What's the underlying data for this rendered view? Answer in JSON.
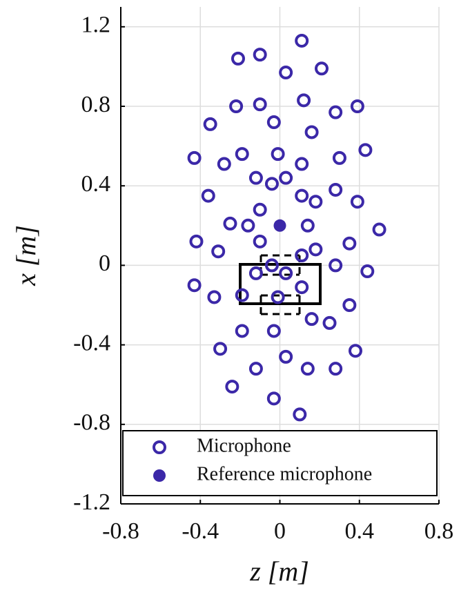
{
  "chart_data": {
    "type": "scatter",
    "x_label": "z [m]",
    "y_label": "x [m]",
    "xlim": [
      -0.8,
      0.8
    ],
    "ylim": [
      -1.2,
      1.3
    ],
    "xticks": [
      -0.8,
      -0.4,
      0,
      0.4,
      0.8
    ],
    "yticks": [
      1.2,
      0.8,
      0.4,
      0,
      -0.4,
      -0.8,
      -1.2
    ],
    "grid": true,
    "legend": "bottom",
    "series": [
      {
        "name": "Microphone",
        "color": "#3b28a8",
        "marker": "open",
        "x": [
          0.11,
          -0.21,
          -0.1,
          0.03,
          0.21,
          -0.22,
          -0.1,
          0.12,
          0.28,
          0.39,
          -0.35,
          -0.03,
          0.16,
          -0.43,
          -0.28,
          -0.19,
          -0.01,
          0.11,
          0.3,
          0.43,
          -0.12,
          -0.04,
          0.03,
          -0.36,
          0.11,
          0.18,
          0.28,
          0.39,
          -0.1,
          -0.25,
          -0.16,
          0.14,
          0.5,
          -0.42,
          -0.1,
          0.35,
          -0.31,
          0.11,
          0.18,
          -0.04,
          0.28,
          -0.12,
          0.03,
          0.44,
          -0.43,
          0.11,
          -0.33,
          -0.19,
          -0.01,
          0.16,
          0.25,
          0.35,
          -0.19,
          -0.03,
          -0.3,
          0.38,
          -0.12,
          0.03,
          0.14,
          0.28,
          -0.24,
          -0.03,
          0.1
        ],
        "y": [
          1.13,
          1.04,
          1.06,
          0.97,
          0.99,
          0.8,
          0.81,
          0.83,
          0.77,
          0.8,
          0.71,
          0.72,
          0.67,
          0.54,
          0.51,
          0.56,
          0.56,
          0.51,
          0.54,
          0.58,
          0.44,
          0.41,
          0.44,
          0.35,
          0.35,
          0.32,
          0.38,
          0.32,
          0.28,
          0.21,
          0.2,
          0.2,
          0.18,
          0.12,
          0.12,
          0.11,
          0.07,
          0.05,
          0.08,
          0.0,
          0.0,
          -0.04,
          -0.04,
          -0.03,
          -0.1,
          -0.11,
          -0.16,
          -0.15,
          -0.16,
          -0.27,
          -0.29,
          -0.2,
          -0.33,
          -0.33,
          -0.42,
          -0.43,
          -0.52,
          -0.46,
          -0.52,
          -0.52,
          -0.61,
          -0.67,
          -0.75
        ]
      },
      {
        "name": "Reference microphone",
        "color": "#3b28a8",
        "marker": "filled",
        "x": [
          0.0
        ],
        "y": [
          0.2
        ]
      }
    ]
  }
}
